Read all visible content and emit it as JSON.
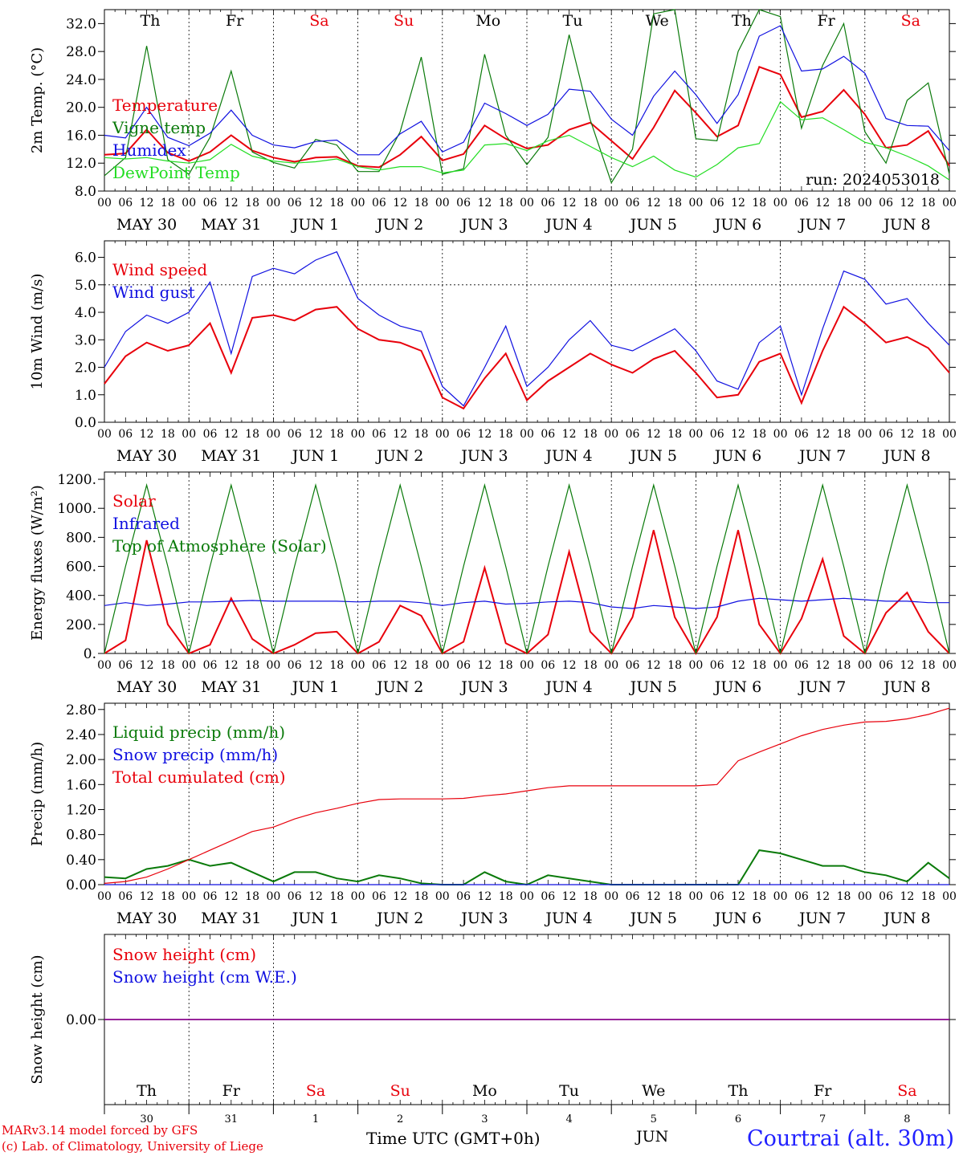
{
  "chart_data": [
    {
      "type": "line",
      "ylabel": "2m Temp. (°C)",
      "ylim": [
        8,
        34
      ],
      "yticks": [
        "8.0",
        "12.0",
        "16.0",
        "20.0",
        "24.0",
        "28.0",
        "32.0"
      ],
      "ytick_values": [
        8,
        12,
        16,
        20,
        24,
        28,
        32
      ],
      "run_label": "run: 2024053018",
      "top_day_labels": [
        "Th",
        "Fr",
        "Sa",
        "Su",
        "Mo",
        "Tu",
        "We",
        "Th",
        "Fr",
        "Sa"
      ],
      "top_day_weekend": [
        false,
        false,
        true,
        true,
        false,
        false,
        false,
        false,
        false,
        true
      ],
      "grid": "vertical dotted daily separators",
      "legend_position": "left",
      "x_hours": [
        0,
        6,
        12,
        18,
        24,
        30,
        36,
        42,
        48,
        54,
        60,
        66,
        72,
        78,
        84,
        90,
        96,
        102,
        108,
        114,
        120,
        126,
        132,
        138,
        144,
        150,
        156,
        162,
        168,
        174,
        180,
        186,
        192,
        198,
        204,
        210,
        216,
        222,
        228,
        234,
        240
      ],
      "series": [
        {
          "name": "Temperature",
          "color": "#e8000b",
          "values": [
            13.2,
            13.4,
            16.8,
            13.5,
            12.3,
            13.6,
            16.0,
            13.8,
            12.8,
            12.2,
            12.8,
            12.9,
            11.6,
            11.4,
            13.2,
            15.8,
            12.4,
            13.3,
            17.4,
            15.5,
            14.1,
            14.6,
            16.8,
            17.8,
            15.2,
            12.6,
            17.1,
            22.4,
            19.2,
            15.8,
            17.4,
            25.8,
            24.7,
            18.6,
            19.4,
            22.5,
            19.0,
            14.2,
            14.6,
            16.6,
            11.6
          ]
        },
        {
          "name": "Vigne temp",
          "color": "#0a7a0a",
          "values": [
            10.2,
            12.8,
            28.8,
            12.5,
            10.4,
            15.7,
            25.2,
            13.6,
            12.1,
            11.3,
            15.4,
            14.6,
            10.8,
            10.8,
            16.5,
            27.2,
            10.4,
            11.2,
            27.6,
            16.0,
            11.8,
            15.7,
            30.4,
            18.2,
            9.2,
            14.0,
            33.4,
            34.0,
            15.5,
            15.2,
            28.0,
            34.0,
            33.0,
            17.0,
            26.0,
            32.0,
            16.5,
            12.0,
            21.0,
            23.5,
            10.4
          ]
        },
        {
          "name": "Humidex",
          "color": "#1010e0",
          "values": [
            16.0,
            15.6,
            20.0,
            15.7,
            14.5,
            16.3,
            19.6,
            16.0,
            14.6,
            14.2,
            15.1,
            15.3,
            13.2,
            13.2,
            16.2,
            18.0,
            13.6,
            15.0,
            20.6,
            19.1,
            17.4,
            19.0,
            22.6,
            22.3,
            18.3,
            16.0,
            21.6,
            25.2,
            21.8,
            17.7,
            21.8,
            30.2,
            31.7,
            25.2,
            25.5,
            27.3,
            24.9,
            18.4,
            17.4,
            17.3,
            13.8
          ]
        },
        {
          "name": "DewPoint Temp",
          "color": "#22dd22",
          "values": [
            12.8,
            12.6,
            12.8,
            12.3,
            12.0,
            12.5,
            14.7,
            13.0,
            12.3,
            12.0,
            12.2,
            12.6,
            11.5,
            11.0,
            11.5,
            11.5,
            10.6,
            11.0,
            14.6,
            14.8,
            13.8,
            15.2,
            16.0,
            14.4,
            12.8,
            11.5,
            13.0,
            11.0,
            10.0,
            11.8,
            14.2,
            14.8,
            20.8,
            18.2,
            18.5,
            16.8,
            15.0,
            14.2,
            13.0,
            11.6,
            9.6
          ]
        }
      ]
    },
    {
      "type": "line",
      "ylabel": "10m Wind (m/s)",
      "ylim": [
        0,
        6.6
      ],
      "yticks": [
        "0.0",
        "1.0",
        "2.0",
        "3.0",
        "4.0",
        "5.0",
        "6.0"
      ],
      "ytick_values": [
        0,
        1,
        2,
        3,
        4,
        5,
        6
      ],
      "reference_line": 5.0,
      "legend_position": "left",
      "x_hours": [
        0,
        6,
        12,
        18,
        24,
        30,
        36,
        42,
        48,
        54,
        60,
        66,
        72,
        78,
        84,
        90,
        96,
        102,
        108,
        114,
        120,
        126,
        132,
        138,
        144,
        150,
        156,
        162,
        168,
        174,
        180,
        186,
        192,
        198,
        204,
        210,
        216,
        222,
        228,
        234,
        240
      ],
      "series": [
        {
          "name": "Wind speed",
          "color": "#e8000b",
          "values": [
            1.4,
            2.4,
            2.9,
            2.6,
            2.8,
            3.6,
            1.8,
            3.8,
            3.9,
            3.7,
            4.1,
            4.2,
            3.4,
            3.0,
            2.9,
            2.6,
            0.9,
            0.5,
            1.6,
            2.5,
            0.8,
            1.5,
            2.0,
            2.5,
            2.1,
            1.8,
            2.3,
            2.6,
            1.8,
            0.9,
            1.0,
            2.2,
            2.5,
            0.7,
            2.6,
            4.2,
            3.6,
            2.9,
            3.1,
            2.7,
            1.8
          ]
        },
        {
          "name": "Wind gust",
          "color": "#1010e0",
          "values": [
            2.0,
            3.3,
            3.9,
            3.6,
            4.0,
            5.1,
            2.5,
            5.3,
            5.6,
            5.4,
            5.9,
            6.2,
            4.5,
            3.9,
            3.5,
            3.3,
            1.3,
            0.6,
            2.0,
            3.5,
            1.3,
            2.0,
            3.0,
            3.7,
            2.8,
            2.6,
            3.0,
            3.4,
            2.6,
            1.5,
            1.2,
            2.9,
            3.5,
            1.0,
            3.4,
            5.5,
            5.2,
            4.3,
            4.5,
            3.6,
            2.8
          ]
        }
      ]
    },
    {
      "type": "line",
      "ylabel": "Energy fluxes (W/m²)",
      "ylim": [
        0,
        1250
      ],
      "yticks": [
        "0.",
        "200.",
        "400.",
        "600.",
        "800.",
        "1000.",
        "1200."
      ],
      "ytick_values": [
        0,
        200,
        400,
        600,
        800,
        1000,
        1200
      ],
      "legend_position": "left",
      "x_hours": [
        0,
        6,
        12,
        18,
        24,
        30,
        36,
        42,
        48,
        54,
        60,
        66,
        72,
        78,
        84,
        90,
        96,
        102,
        108,
        114,
        120,
        126,
        132,
        138,
        144,
        150,
        156,
        162,
        168,
        174,
        180,
        186,
        192,
        198,
        204,
        210,
        216,
        222,
        228,
        234,
        240
      ],
      "series": [
        {
          "name": "Solar",
          "color": "#e8000b",
          "values": [
            0,
            90,
            780,
            200,
            0,
            60,
            380,
            100,
            0,
            60,
            140,
            150,
            0,
            80,
            330,
            260,
            0,
            80,
            590,
            70,
            0,
            130,
            700,
            150,
            0,
            250,
            850,
            250,
            0,
            250,
            850,
            200,
            0,
            240,
            650,
            120,
            0,
            280,
            420,
            150,
            0
          ]
        },
        {
          "name": "Infrared",
          "color": "#1010e0",
          "values": [
            330,
            350,
            330,
            340,
            355,
            355,
            360,
            365,
            360,
            360,
            360,
            360,
            355,
            360,
            360,
            350,
            330,
            350,
            360,
            340,
            345,
            355,
            360,
            350,
            320,
            310,
            330,
            320,
            310,
            320,
            360,
            380,
            370,
            360,
            370,
            380,
            370,
            360,
            360,
            350,
            350
          ]
        },
        {
          "name": "Top of Atmosphere (Solar)",
          "color": "#0a7a0a",
          "values": [
            0,
            600,
            1160,
            600,
            0,
            600,
            1160,
            600,
            0,
            600,
            1160,
            600,
            0,
            600,
            1160,
            600,
            0,
            600,
            1160,
            600,
            0,
            600,
            1160,
            600,
            0,
            600,
            1160,
            600,
            0,
            600,
            1160,
            600,
            0,
            600,
            1160,
            600,
            0,
            600,
            1160,
            600,
            0
          ]
        }
      ]
    },
    {
      "type": "line",
      "ylabel": "Precip (mm/h)",
      "ylim": [
        0,
        2.9
      ],
      "yticks": [
        "0.00",
        "0.40",
        "0.80",
        "1.20",
        "1.60",
        "2.00",
        "2.40",
        "2.80"
      ],
      "ytick_values": [
        0,
        0.4,
        0.8,
        1.2,
        1.6,
        2.0,
        2.4,
        2.8
      ],
      "legend_position": "left",
      "x_hours": [
        0,
        6,
        12,
        18,
        24,
        30,
        36,
        42,
        48,
        54,
        60,
        66,
        72,
        78,
        84,
        90,
        96,
        102,
        108,
        114,
        120,
        126,
        132,
        138,
        144,
        150,
        156,
        162,
        168,
        174,
        180,
        186,
        192,
        198,
        204,
        210,
        216,
        222,
        228,
        234,
        240
      ],
      "series": [
        {
          "name": "Liquid precip (mm/h)",
          "color": "#0a7a0a",
          "values": [
            0.12,
            0.1,
            0.25,
            0.3,
            0.4,
            0.3,
            0.35,
            0.2,
            0.05,
            0.2,
            0.2,
            0.1,
            0.05,
            0.15,
            0.1,
            0.02,
            0,
            0,
            0.2,
            0.05,
            0,
            0.15,
            0.1,
            0.05,
            0,
            0,
            0,
            0,
            0,
            0,
            0,
            0.55,
            0.5,
            0.4,
            0.3,
            0.3,
            0.2,
            0.15,
            0.05,
            0.35,
            0.1
          ]
        },
        {
          "name": "Snow precip (mm/h)",
          "color": "#1010e0",
          "values": [
            0,
            0,
            0,
            0,
            0,
            0,
            0,
            0,
            0,
            0,
            0,
            0,
            0,
            0,
            0,
            0,
            0,
            0,
            0,
            0,
            0,
            0,
            0,
            0,
            0,
            0,
            0,
            0,
            0,
            0,
            0,
            0,
            0,
            0,
            0,
            0,
            0,
            0,
            0,
            0,
            0
          ]
        },
        {
          "name": "Total cumulated (cm)",
          "color": "#e8000b",
          "values": [
            0.02,
            0.05,
            0.12,
            0.25,
            0.4,
            0.55,
            0.7,
            0.85,
            0.92,
            1.05,
            1.15,
            1.22,
            1.3,
            1.36,
            1.37,
            1.37,
            1.37,
            1.38,
            1.42,
            1.45,
            1.5,
            1.55,
            1.58,
            1.58,
            1.58,
            1.58,
            1.58,
            1.58,
            1.58,
            1.6,
            1.98,
            2.12,
            2.25,
            2.38,
            2.48,
            2.55,
            2.6,
            2.61,
            2.65,
            2.72,
            2.82
          ]
        }
      ]
    },
    {
      "type": "line",
      "ylabel": "Snow height (cm)",
      "ylim": [
        -1,
        1
      ],
      "yticks": [
        "0.00"
      ],
      "ytick_values": [
        0
      ],
      "legend_position": "left",
      "x_hours": [
        0,
        240
      ],
      "series": [
        {
          "name": "Snow height (cm)",
          "color": "#e8000b",
          "values": [
            0,
            0
          ]
        },
        {
          "name": "Snow height (cm W.E.)",
          "color": "#1010e0",
          "values": [
            0,
            0
          ]
        }
      ]
    }
  ],
  "axes": {
    "hour_tick_labels": [
      "00",
      "06",
      "12",
      "18"
    ],
    "final_hour_label": "00",
    "date_labels": [
      "MAY 30",
      "MAY 31",
      "JUN  1",
      "JUN  2",
      "JUN  3",
      "JUN  4",
      "JUN  5",
      "JUN  6",
      "JUN  7",
      "JUN  8"
    ],
    "bottom_day_labels": [
      "Th",
      "Fr",
      "Sa",
      "Su",
      "Mo",
      "Tu",
      "We",
      "Th",
      "Fr",
      "Sa"
    ],
    "bottom_day_numbers": [
      "30",
      "31",
      "1",
      "2",
      "3",
      "4",
      "5",
      "6",
      "7",
      "8"
    ],
    "bottom_month_label": "JUN",
    "xlabel": "Time UTC (GMT+0h)"
  },
  "colors": {
    "red": "#e8000b",
    "green": "#0a7a0a",
    "blue": "#1010e0",
    "lightgreen": "#22dd22",
    "snow_line": "#8b008b"
  },
  "footer": {
    "line1": "MARv3.14 model forced by GFS",
    "line2": "(c) Lab. of Climatology, University of Liege",
    "site": "Courtrai (alt. 30m)"
  }
}
